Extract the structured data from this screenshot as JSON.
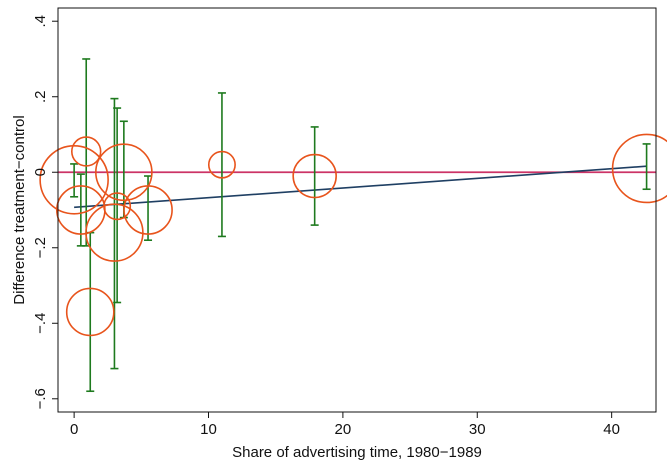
{
  "chart_data": {
    "type": "scatter",
    "title": "",
    "xlabel": "Share of advertising time, 1980−1989",
    "ylabel": "Difference treatment−control",
    "xlim": [
      -1.2,
      43.3
    ],
    "ylim": [
      -0.635,
      0.435
    ],
    "x_ticks": [
      0,
      10,
      20,
      30,
      40
    ],
    "x_tick_labels": [
      "0",
      "10",
      "20",
      "30",
      "40"
    ],
    "y_ticks": [
      -0.6,
      -0.4,
      -0.2,
      0,
      0.2,
      0.4
    ],
    "y_tick_labels": [
      "−.6",
      "−.4",
      "−.2",
      "0",
      ".2",
      ".4"
    ],
    "grid": false,
    "legend": "none",
    "reference_line": {
      "y": 0,
      "color": "#cc3366"
    },
    "fit_line": {
      "x": [
        0,
        42.6
      ],
      "y": [
        -0.093,
        0.016
      ],
      "color": "#1f3f63"
    },
    "points": [
      {
        "x": 0.0,
        "y": -0.02,
        "ci_low": -0.065,
        "ci_high": 0.022,
        "weight": 1.0
      },
      {
        "x": 0.5,
        "y": -0.1,
        "ci_low": -0.195,
        "ci_high": -0.005,
        "weight": 0.5
      },
      {
        "x": 0.9,
        "y": 0.055,
        "ci_low": -0.195,
        "ci_high": 0.3,
        "weight": 0.18
      },
      {
        "x": 1.2,
        "y": -0.37,
        "ci_low": -0.58,
        "ci_high": -0.16,
        "weight": 0.48
      },
      {
        "x": 3.0,
        "y": -0.16,
        "ci_low": -0.52,
        "ci_high": 0.195,
        "weight": 0.7
      },
      {
        "x": 3.2,
        "y": -0.09,
        "ci_low": -0.345,
        "ci_high": 0.17,
        "weight": 0.15
      },
      {
        "x": 3.7,
        "y": 0.0,
        "ci_low": -0.12,
        "ci_high": 0.135,
        "weight": 0.68
      },
      {
        "x": 5.5,
        "y": -0.1,
        "ci_low": -0.18,
        "ci_high": -0.01,
        "weight": 0.5
      },
      {
        "x": 11.0,
        "y": 0.02,
        "ci_low": -0.17,
        "ci_high": 0.21,
        "weight": 0.15
      },
      {
        "x": 17.9,
        "y": -0.01,
        "ci_low": -0.14,
        "ci_high": 0.12,
        "weight": 0.4
      },
      {
        "x": 42.6,
        "y": 0.01,
        "ci_low": -0.045,
        "ci_high": 0.075,
        "weight": 1.0
      }
    ],
    "colors": {
      "marker": "#e8541c",
      "error_bar": "#1e7a1e",
      "axis": "#111111"
    }
  }
}
